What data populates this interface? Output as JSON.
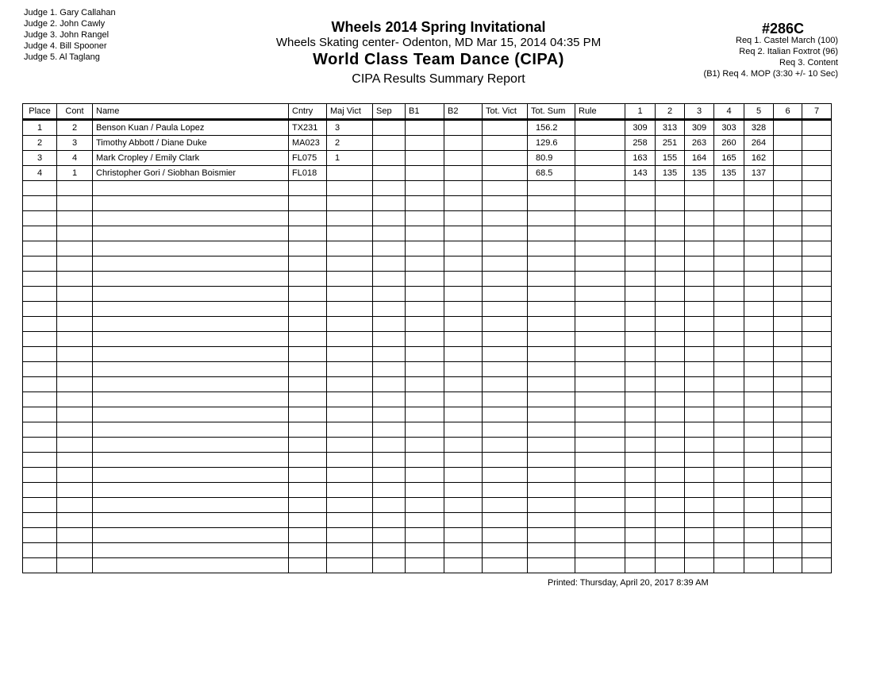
{
  "judges": [
    "Judge  1.  Gary Callahan",
    "Judge  2.  John Cawly",
    "Judge  3.  John Rangel",
    "Judge  4.  Bill Spooner",
    "Judge  5.  Al Taglang"
  ],
  "header": {
    "event": "Wheels 2014 Spring Invitational",
    "venue": "Wheels Skating center- Odenton, MD  Mar 15, 2014  04:35 PM",
    "category": "World Class Team Dance (CIPA)",
    "report": "CIPA Results Summary Report",
    "code": "#286C"
  },
  "requirements": [
    "Req  1.  Castel March (100)",
    "Req  2.  Italian Foxtrot (96)",
    "Req  3.  Content",
    "(B1)  Req  4.  MOP (3:30 +/- 10 Sec)"
  ],
  "table": {
    "columns": [
      "Place",
      "Cont",
      "Name",
      "Cntry",
      "Maj Vict",
      "Sep",
      "B1",
      "B2",
      "Tot. Vict",
      "Tot. Sum",
      "Rule",
      "1",
      "2",
      "3",
      "4",
      "5",
      "6",
      "7"
    ],
    "rows": [
      [
        "1",
        "2",
        "Benson Kuan / Paula Lopez",
        "TX231",
        "3",
        "",
        "",
        "",
        "",
        "156.2",
        "",
        "309",
        "313",
        "309",
        "303",
        "328",
        "",
        ""
      ],
      [
        "2",
        "3",
        "Timothy Abbott / Diane Duke",
        "MA023",
        "2",
        "",
        "",
        "",
        "",
        "129.6",
        "",
        "258",
        "251",
        "263",
        "260",
        "264",
        "",
        ""
      ],
      [
        "3",
        "4",
        "Mark Cropley / Emily Clark",
        "FL075",
        "1",
        "",
        "",
        "",
        "",
        "80.9",
        "",
        "163",
        "155",
        "164",
        "165",
        "162",
        "",
        ""
      ],
      [
        "4",
        "1",
        "Christopher Gori / Siobhan Boismier",
        "FL018",
        "",
        "",
        "",
        "",
        "",
        "68.5",
        "",
        "143",
        "135",
        "135",
        "135",
        "137",
        "",
        ""
      ]
    ]
  },
  "printed": "Printed:  Thursday, April 20, 2017  8:39 AM"
}
